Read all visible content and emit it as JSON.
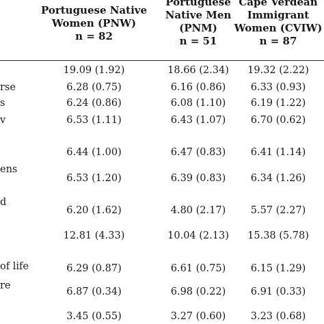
{
  "columns": [
    {
      "lines": [
        "Portuguese Native",
        "Women (PNW)",
        "n = 82"
      ]
    },
    {
      "lines": [
        "Portuguese",
        "Native Men",
        "(PNM)",
        "n = 51"
      ]
    },
    {
      "lines": [
        "Cape Verdean",
        "Immigrant",
        "Women (CVIW)",
        "n = 87"
      ]
    }
  ],
  "rows": [
    {
      "label": "",
      "values": [
        "19.09 (1.92)",
        "18.66 (2.34)",
        "19.32 (2.22)"
      ]
    },
    {
      "label": "rse",
      "values": [
        "6.28 (0.75)",
        "6.16 (0.86)",
        "6.33 (0.93)"
      ]
    },
    {
      "label": "s",
      "values": [
        "6.24 (0.86)",
        "6.08 (1.10)",
        "6.19 (1.22)"
      ]
    },
    {
      "label": "v",
      "values": [
        "6.53 (1.11)",
        "6.43 (1.07)",
        "6.70 (0.62)"
      ]
    },
    {
      "label": "",
      "values": [
        "6.44 (1.00)",
        "6.47 (0.83)",
        "6.41 (1.14)"
      ]
    },
    {
      "label": "ens",
      "values": [
        "6.53 (1.20)",
        "6.39 (0.83)",
        "6.34 (1.26)"
      ]
    },
    {
      "label": "d",
      "values": [
        "6.20 (1.62)",
        "4.80 (2.17)",
        "5.57 (2.27)"
      ]
    },
    {
      "label": "",
      "values": [
        "12.81 (4.33)",
        "10.04 (2.13)",
        "15.38 (5.78)"
      ]
    },
    {
      "label": "of life",
      "values": [
        "6.29 (0.87)",
        "6.61 (0.75)",
        "6.15 (1.29)"
      ]
    },
    {
      "label": "re",
      "values": [
        "6.87 (0.34)",
        "6.98 (0.22)",
        "6.91 (0.33)"
      ]
    },
    {
      "label": "",
      "values": [
        "3.45 (0.55)",
        "3.27 (0.60)",
        "3.23 (0.68)"
      ]
    }
  ]
}
